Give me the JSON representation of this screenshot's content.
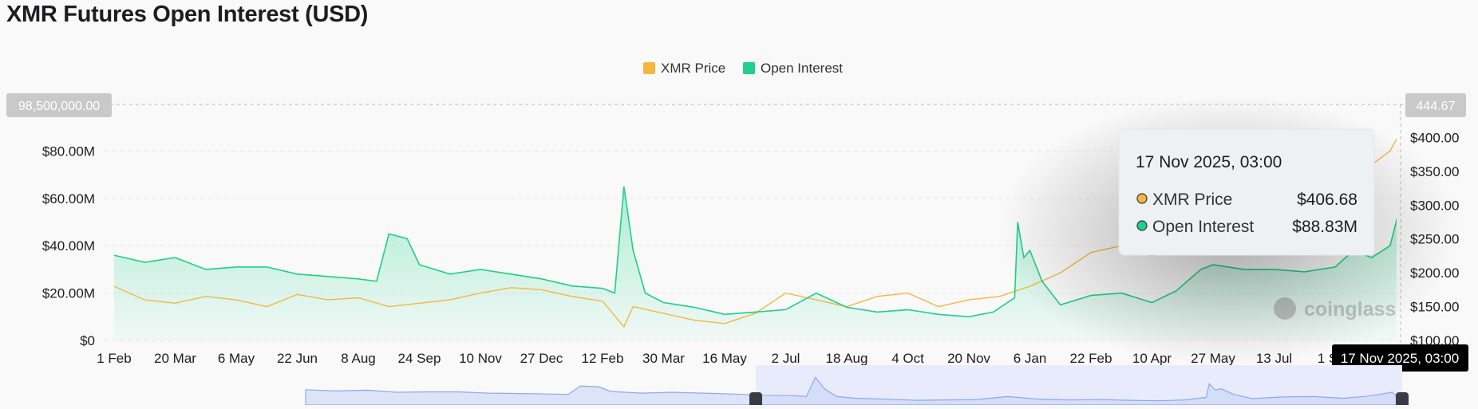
{
  "title": "XMR Futures Open Interest (USD)",
  "colors": {
    "price": "#f3b73f",
    "oi": "#1fcf8b",
    "oi_fill_top": "#2fd896",
    "grid": "#e6e6e6",
    "navigator": "#8fa8ef"
  },
  "legend": [
    {
      "name": "XMR Price",
      "color": "#f3b73f"
    },
    {
      "name": "Open Interest",
      "color": "#1fcf8b"
    }
  ],
  "crosshair": {
    "left_label": "98,500,000.00",
    "right_label": "444.67",
    "x_label": "17 Nov 2025, 03:00"
  },
  "tooltip": {
    "title": "17 Nov 2025, 03:00",
    "rows": [
      {
        "label": "XMR Price",
        "value": "$406.68",
        "color": "#f3b73f"
      },
      {
        "label": "Open Interest",
        "value": "$88.83M",
        "color": "#1fcf8b"
      }
    ]
  },
  "watermark": "coinglass",
  "chart_data": {
    "type": "line",
    "title": "XMR Futures Open Interest (USD)",
    "x_tick_labels": [
      "1 Feb",
      "20 Mar",
      "6 May",
      "22 Jun",
      "8 Aug",
      "24 Sep",
      "10 Nov",
      "27 Dec",
      "12 Feb",
      "30 Mar",
      "16 May",
      "2 Jul",
      "18 Aug",
      "4 Oct",
      "20 Nov",
      "6 Jan",
      "22 Feb",
      "10 Apr",
      "27 May",
      "13 Jul",
      "1 Sep"
    ],
    "y_left": {
      "ticks": [
        "$0",
        "$20.00M",
        "$40.00M",
        "$60.00M",
        "$80.00M"
      ],
      "min": 0,
      "max": 100
    },
    "y_right": {
      "ticks": [
        "$100.00",
        "$150.00",
        "$200.00",
        "$250.00",
        "$300.00",
        "$350.00",
        "$400.00"
      ],
      "min": 100,
      "max": 450
    },
    "grid": true,
    "legend_position": "top-center",
    "series": [
      {
        "name": "Open Interest",
        "axis": "left",
        "unit": "M USD",
        "points": [
          [
            0,
            36
          ],
          [
            0.5,
            33
          ],
          [
            1,
            35
          ],
          [
            1.5,
            30
          ],
          [
            2,
            31
          ],
          [
            2.5,
            31
          ],
          [
            3,
            28
          ],
          [
            3.5,
            27
          ],
          [
            4,
            26
          ],
          [
            4.3,
            25
          ],
          [
            4.5,
            45
          ],
          [
            4.8,
            43
          ],
          [
            5,
            32
          ],
          [
            5.5,
            28
          ],
          [
            6,
            30
          ],
          [
            6.5,
            28
          ],
          [
            7,
            26
          ],
          [
            7.5,
            23
          ],
          [
            8,
            22
          ],
          [
            8.2,
            20
          ],
          [
            8.35,
            65
          ],
          [
            8.5,
            38
          ],
          [
            8.7,
            20
          ],
          [
            9,
            16
          ],
          [
            9.5,
            14
          ],
          [
            10,
            11
          ],
          [
            10.5,
            12
          ],
          [
            11,
            13
          ],
          [
            11.5,
            20
          ],
          [
            12,
            14
          ],
          [
            12.5,
            12
          ],
          [
            13,
            13
          ],
          [
            13.5,
            11
          ],
          [
            14,
            10
          ],
          [
            14.4,
            12
          ],
          [
            14.75,
            18
          ],
          [
            14.8,
            50
          ],
          [
            14.9,
            35
          ],
          [
            15,
            38
          ],
          [
            15.2,
            25
          ],
          [
            15.5,
            15
          ],
          [
            16,
            19
          ],
          [
            16.5,
            20
          ],
          [
            17,
            16
          ],
          [
            17.4,
            21
          ],
          [
            17.8,
            30
          ],
          [
            18,
            32
          ],
          [
            18.5,
            30
          ],
          [
            19,
            30
          ],
          [
            19.5,
            29
          ],
          [
            20,
            31
          ],
          [
            20.3,
            38
          ],
          [
            20.6,
            35
          ],
          [
            20.9,
            40
          ],
          [
            21.2,
            70
          ],
          [
            21.35,
            98.5
          ],
          [
            21.5,
            88.8
          ]
        ]
      },
      {
        "name": "XMR Price",
        "axis": "right",
        "unit": "USD",
        "points": [
          [
            0,
            180
          ],
          [
            0.5,
            160
          ],
          [
            1,
            155
          ],
          [
            1.5,
            165
          ],
          [
            2,
            160
          ],
          [
            2.5,
            150
          ],
          [
            3,
            168
          ],
          [
            3.5,
            160
          ],
          [
            4,
            163
          ],
          [
            4.5,
            150
          ],
          [
            5,
            155
          ],
          [
            5.5,
            160
          ],
          [
            6,
            170
          ],
          [
            6.5,
            178
          ],
          [
            7,
            175
          ],
          [
            7.5,
            165
          ],
          [
            8,
            158
          ],
          [
            8.35,
            120
          ],
          [
            8.5,
            150
          ],
          [
            9,
            140
          ],
          [
            9.5,
            130
          ],
          [
            10,
            125
          ],
          [
            10.5,
            140
          ],
          [
            11,
            170
          ],
          [
            11.5,
            160
          ],
          [
            12,
            150
          ],
          [
            12.5,
            165
          ],
          [
            13,
            170
          ],
          [
            13.5,
            150
          ],
          [
            14,
            160
          ],
          [
            14.5,
            165
          ],
          [
            15,
            180
          ],
          [
            15.5,
            200
          ],
          [
            16,
            230
          ],
          [
            16.5,
            240
          ],
          [
            17,
            225
          ],
          [
            17.3,
            235
          ],
          [
            17.7,
            245
          ],
          [
            18,
            260
          ],
          [
            18.5,
            250
          ],
          [
            19,
            265
          ],
          [
            19.5,
            270
          ],
          [
            20,
            280
          ],
          [
            20.3,
            300
          ],
          [
            20.6,
            360
          ],
          [
            20.9,
            380
          ],
          [
            21.2,
            430
          ],
          [
            21.35,
            444.67
          ],
          [
            21.5,
            406.68
          ]
        ]
      }
    ]
  }
}
